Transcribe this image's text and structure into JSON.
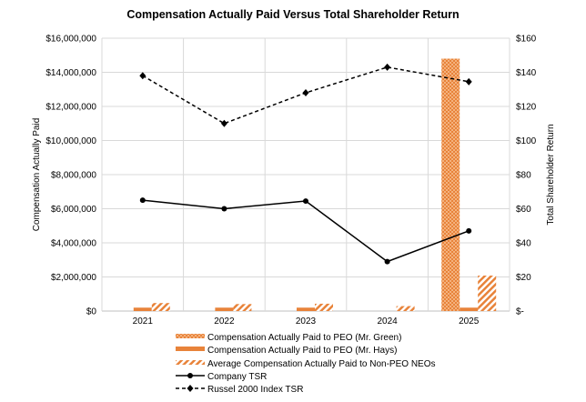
{
  "chart_data": {
    "type": "bar+line",
    "title": "Compensation Actually Paid Versus Total Shareholder Return",
    "categories": [
      "2021",
      "2022",
      "2023",
      "2024",
      "2025"
    ],
    "ylabel_left": "Compensation Actually Paid",
    "ylabel_right": "Total Shareholder Return",
    "ylim_left": [
      0,
      16000000
    ],
    "ylim_right": [
      0,
      160
    ],
    "left_ticks": [
      "$0",
      "$2,000,000",
      "$4,000,000",
      "$6,000,000",
      "$8,000,000",
      "$10,000,000",
      "$12,000,000",
      "$14,000,000",
      "$16,000,000"
    ],
    "right_ticks": [
      "$-",
      "$20",
      "$40",
      "$60",
      "$80",
      "$100",
      "$120",
      "$140",
      "$160"
    ],
    "grid": true,
    "legend_position": "bottom",
    "bar_series": [
      {
        "name": "Compensation Actually Paid to PEO (Mr. Green)",
        "values": [
          0,
          0,
          0,
          0,
          14800000
        ],
        "pattern": "checker",
        "color": "#E8833A"
      },
      {
        "name": "Compensation Actually Paid to PEO (Mr. Hays)",
        "values": [
          200000,
          200000,
          200000,
          0,
          200000
        ],
        "pattern": "solid",
        "color": "#E8833A"
      },
      {
        "name": "Average Compensation Actually Paid to Non-PEO NEOs",
        "values": [
          470000,
          410000,
          430000,
          290000,
          2080000
        ],
        "pattern": "diagonal",
        "color": "#E8833A"
      }
    ],
    "line_series": [
      {
        "name": "Company TSR",
        "values": [
          65,
          60,
          64.5,
          29,
          47
        ],
        "style": "solid",
        "marker": "circle",
        "color": "#000000"
      },
      {
        "name": "Russel 2000 Index TSR",
        "values": [
          138,
          110,
          128,
          143,
          134.5
        ],
        "style": "dashed",
        "marker": "diamond",
        "color": "#000000"
      }
    ]
  }
}
